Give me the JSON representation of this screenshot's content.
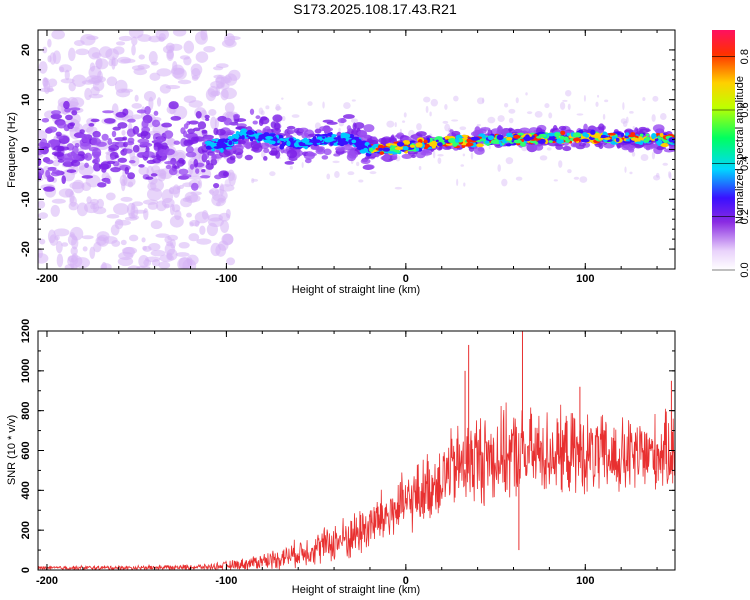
{
  "title": "S173.2025.108.17.43.R21",
  "chart_data": [
    {
      "type": "heatmap",
      "xlabel": "Height of straight line (km)",
      "ylabel": "Frequency (Hz)",
      "xlim": [
        -205,
        150
      ],
      "ylim": [
        -24,
        24
      ],
      "xticks": [
        -200,
        -100,
        0,
        100
      ],
      "yticks": [
        -20,
        -10,
        0,
        10,
        20
      ],
      "colorbar": {
        "label": "Normalized spectral amplitude",
        "range": [
          0,
          0.9
        ],
        "ticks": [
          0.0,
          0.2,
          0.4,
          0.6,
          0.8
        ]
      },
      "ridge": {
        "x": [
          -205,
          -100,
          -90,
          -60,
          -45,
          -30,
          -20,
          0,
          20,
          50,
          100,
          140,
          150
        ],
        "frequency": [
          0,
          1,
          3,
          1,
          2,
          2,
          0,
          0.5,
          1.5,
          2,
          2.5,
          2,
          2
        ]
      },
      "peak_amplitude_region": [
        -20,
        150
      ]
    },
    {
      "type": "line",
      "xlabel": "Height of straight line (km)",
      "ylabel": "SNR (10 * v/v)",
      "xlim": [
        -205,
        150
      ],
      "ylim": [
        0,
        1200
      ],
      "xticks": [
        -200,
        -100,
        0,
        100
      ],
      "yticks": [
        0,
        200,
        400,
        600,
        800,
        1000,
        1200
      ],
      "color": "#e83030",
      "envelope": {
        "x": [
          -205,
          -150,
          -110,
          -90,
          -70,
          -50,
          -30,
          -15,
          0,
          15,
          25,
          40,
          60,
          80,
          100,
          120,
          150
        ],
        "mean": [
          10,
          12,
          15,
          30,
          60,
          110,
          170,
          250,
          330,
          430,
          500,
          560,
          580,
          590,
          580,
          560,
          600
        ],
        "spread": [
          8,
          10,
          12,
          25,
          45,
          70,
          100,
          120,
          130,
          150,
          170,
          200,
          190,
          180,
          170,
          170,
          160
        ]
      },
      "peaks": [
        {
          "x": 35,
          "y": 1130
        },
        {
          "x": 65,
          "y": 1200
        },
        {
          "x": 33,
          "y": 1000
        },
        {
          "x": 97,
          "y": 920
        },
        {
          "x": 148,
          "y": 950
        },
        {
          "x": 63,
          "y": 100
        }
      ]
    }
  ]
}
